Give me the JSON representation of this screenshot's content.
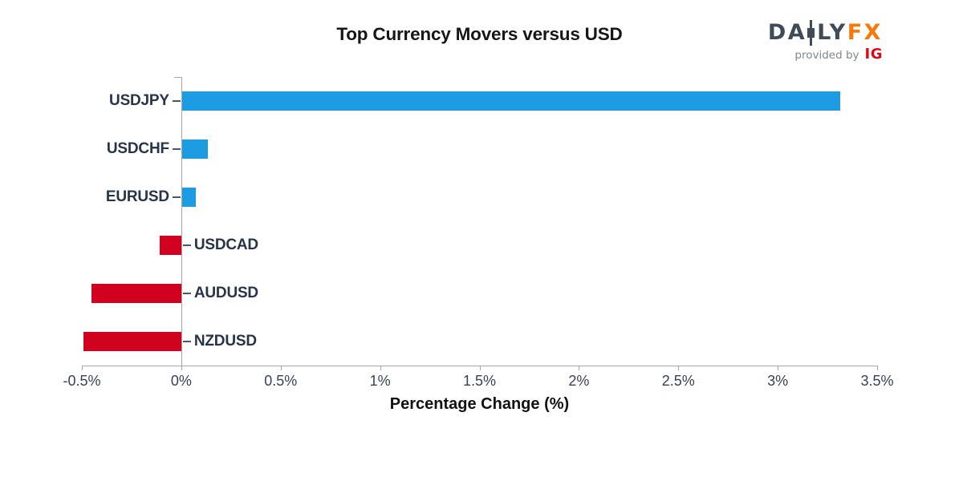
{
  "header": {
    "title": "Top Currency Movers versus USD"
  },
  "logo": {
    "daily_left": "DA",
    "daily_right": "LY",
    "fx": "FX",
    "provided_by": "provided by",
    "ig": "IG",
    "slate_color": "#3f4b59",
    "fx_color": "#f8780a",
    "provided_color": "#7d8894",
    "ig_color": "#e30613"
  },
  "chart_data": {
    "type": "bar",
    "orientation": "horizontal",
    "title": "Top Currency Movers versus USD",
    "xlabel": "Percentage Change (%)",
    "categories": [
      "USDJPY",
      "USDCHF",
      "EURUSD",
      "USDCAD",
      "AUDUSD",
      "NZDUSD"
    ],
    "values": [
      3.31,
      0.13,
      0.07,
      -0.11,
      -0.45,
      -0.49
    ],
    "x_ticks": [
      -0.5,
      0,
      0.5,
      1,
      1.5,
      2,
      2.5,
      3,
      3.5
    ],
    "x_tick_labels": [
      "-0.5%",
      "0%",
      "0.5%",
      "1%",
      "1.5%",
      "2%",
      "2.5%",
      "3%",
      "3.5%"
    ],
    "xlim": [
      -0.5,
      3.5
    ],
    "grid": false,
    "legend": false,
    "positive_color": "#1d9ce3",
    "negative_color": "#d0021f",
    "axis_color": "#a6a6a6",
    "category_label_color": "#273449",
    "category_tick_color": "#4a5668",
    "tick_label_color": "#36425a"
  }
}
